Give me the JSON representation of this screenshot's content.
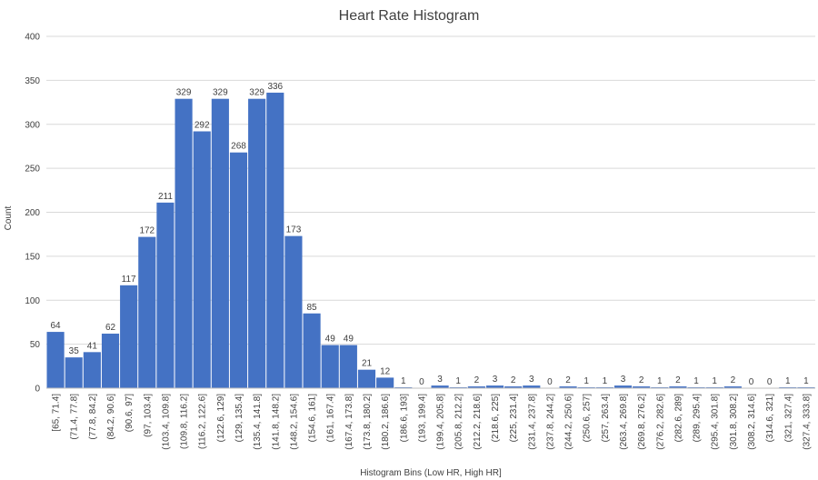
{
  "chart_data": {
    "type": "bar",
    "title": "Heart Rate Histogram",
    "xlabel": "Histogram Bins (Low HR, High HR]",
    "ylabel": "Count",
    "ylim": [
      0,
      400
    ],
    "yticks": [
      0,
      50,
      100,
      150,
      200,
      250,
      300,
      350,
      400
    ],
    "grid": true,
    "bar_color": "#4472c4",
    "categories": [
      "[65, 71.4]",
      "(71.4, 77.8]",
      "(77.8, 84.2]",
      "(84.2, 90.6]",
      "(90.6, 97]",
      "(97, 103.4]",
      "(103.4, 109.8]",
      "(109.8, 116.2]",
      "(116.2, 122.6]",
      "(122.6, 129]",
      "(129, 135.4]",
      "(135.4, 141.8]",
      "(141.8, 148.2]",
      "(148.2, 154.6]",
      "(154.6, 161]",
      "(161, 167.4]",
      "(167.4, 173.8]",
      "(173.8, 180.2]",
      "(180.2, 186.6]",
      "(186.6, 193]",
      "(193, 199.4]",
      "(199.4, 205.8]",
      "(205.8, 212.2]",
      "(212.2, 218.6]",
      "(218.6, 225]",
      "(225, 231.4]",
      "(231.4, 237.8]",
      "(237.8, 244.2]",
      "(244.2, 250.6]",
      "(250.6, 257]",
      "(257, 263.4]",
      "(263.4, 269.8]",
      "(269.8, 276.2]",
      "(276.2, 282.6]",
      "(282.6, 289]",
      "(289, 295.4]",
      "(295.4, 301.8]",
      "(301.8, 308.2]",
      "(308.2, 314.6]",
      "(314.6, 321]",
      "(321, 327.4]",
      "(327.4, 333.8]"
    ],
    "values": [
      64,
      35,
      41,
      62,
      117,
      172,
      211,
      329,
      292,
      329,
      268,
      329,
      336,
      173,
      85,
      49,
      49,
      21,
      12,
      1,
      0,
      3,
      1,
      2,
      3,
      2,
      3,
      0,
      2,
      1,
      1,
      3,
      2,
      1,
      2,
      1,
      1,
      2,
      0,
      0,
      1,
      1
    ]
  }
}
